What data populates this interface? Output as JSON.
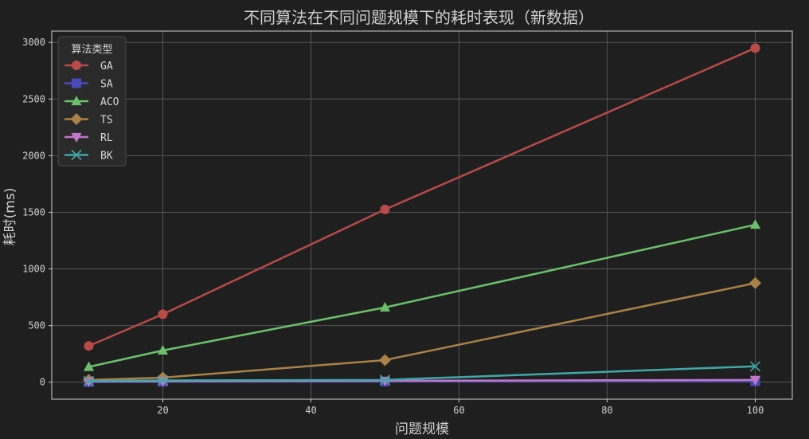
{
  "chart_data": {
    "type": "line",
    "title": "不同算法在不同问题规模下的耗时表现（新数据）",
    "xlabel": "问题规模",
    "ylabel": "耗时(ms)",
    "x": [
      10,
      20,
      50,
      100
    ],
    "xlim": [
      5,
      105
    ],
    "ylim": [
      -150,
      3100
    ],
    "xticks": [
      20,
      40,
      60,
      80,
      100
    ],
    "yticks": [
      0,
      500,
      1000,
      1500,
      2000,
      2500,
      3000
    ],
    "grid": true,
    "legend": {
      "title": "算法类型",
      "placement": "top-left"
    },
    "series": [
      {
        "name": "GA",
        "values": [
          320,
          600,
          1525,
          2950
        ],
        "color": "#b84a4a",
        "marker": "circle"
      },
      {
        "name": "SA",
        "values": [
          2,
          4,
          6,
          8
        ],
        "color": "#4a4ab8",
        "marker": "square"
      },
      {
        "name": "ACO",
        "values": [
          135,
          280,
          660,
          1390
        ],
        "color": "#6cc06c",
        "marker": "triangle-up"
      },
      {
        "name": "TS",
        "values": [
          20,
          40,
          195,
          875
        ],
        "color": "#a88248",
        "marker": "diamond"
      },
      {
        "name": "RL",
        "values": [
          5,
          8,
          12,
          20
        ],
        "color": "#c078c8",
        "marker": "triangle-down"
      },
      {
        "name": "BK",
        "values": [
          10,
          15,
          20,
          140
        ],
        "color": "#40a8a8",
        "marker": "x"
      }
    ]
  },
  "colors": {
    "background": "#1f1f1f",
    "plot_frame": "#cfcfcf",
    "grid": "#555555"
  }
}
